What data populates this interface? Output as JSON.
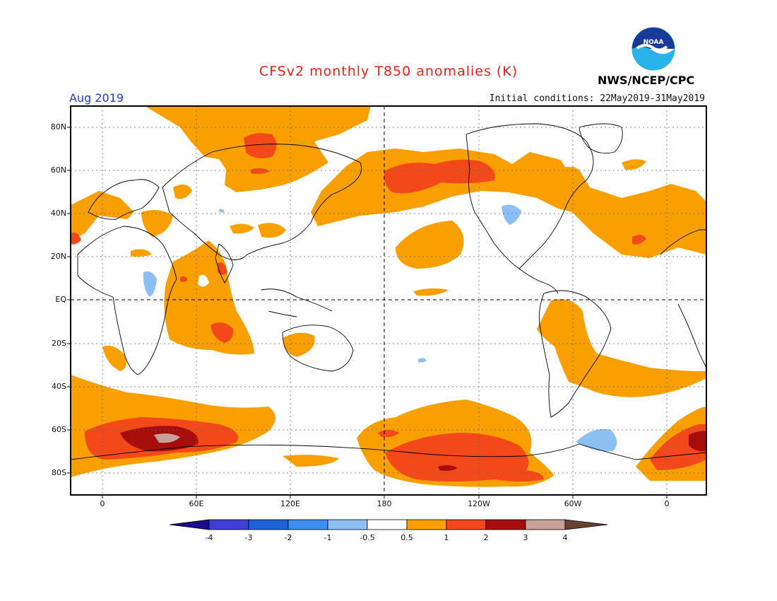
{
  "header": {
    "title": "CFSv2 monthly T850 anomalies (K)",
    "month": "Aug 2019",
    "initial_conditions": "Initial conditions: 22May2019-31May2019",
    "agency": "NWS/NCEP/CPC",
    "logo_text": "NOAA"
  },
  "axes": {
    "lat_labels": [
      "80N",
      "60N",
      "40N",
      "20N",
      "EQ",
      "20S",
      "40S",
      "60S",
      "80S"
    ],
    "lon_labels": [
      "0",
      "60E",
      "120E",
      "180",
      "120W",
      "60W",
      "0"
    ]
  },
  "colorbar": {
    "labels": [
      "-4",
      "-3",
      "-2",
      "-1",
      "-0.5",
      "0.5",
      "1",
      "2",
      "3",
      "4"
    ],
    "colors": [
      "#1a0a8c",
      "#3f3fd6",
      "#1a64d8",
      "#3a90f0",
      "#8cc0f5",
      "#ffffff",
      "#f9a000",
      "#f3481a",
      "#a80d0d",
      "#c9a097",
      "#6b4030"
    ]
  },
  "legend_colors": {
    "warm_0_5_1": "#f9a000",
    "warm_1_2": "#f3481a",
    "warm_2_3": "#a80d0d",
    "warm_3_4": "#c9a097",
    "cool_-1_-0_5": "#8cc0f5"
  }
}
